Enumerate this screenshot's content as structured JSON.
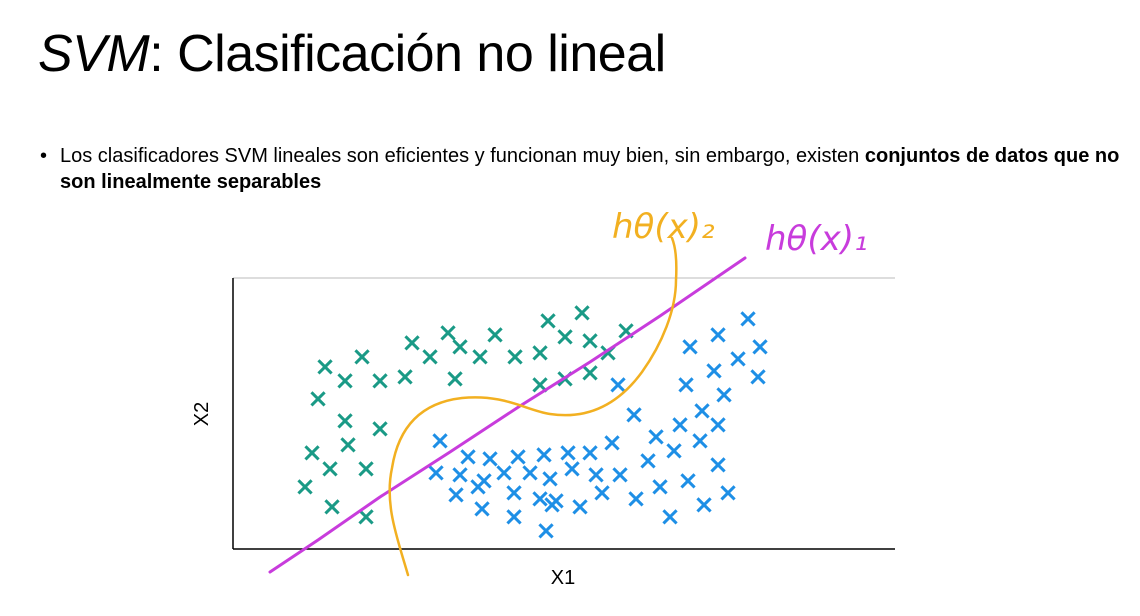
{
  "title": {
    "italic_part": "SVM",
    "rest": ": Clasificación no lineal"
  },
  "bullet": {
    "marker": "•",
    "text_regular": "Los clasificadores SVM lineales son eficientes y funcionan muy bien, sin embargo, existen ",
    "text_bold": "conjuntos de datos que no son linealmente separables"
  },
  "figure": {
    "xlabel": "X1",
    "ylabel": "X2",
    "annotation_line_1": "hθ(x)₁",
    "annotation_line_2": "hθ(x)₂",
    "colors": {
      "class_green": "#1a9a86",
      "class_blue": "#1e8fe6",
      "line_1_magenta": "#c83cdc",
      "line_2_orange": "#f2b021",
      "axes": "#000000",
      "top_border": "#bbbbbb"
    },
    "marker_symbol": "×"
  }
}
